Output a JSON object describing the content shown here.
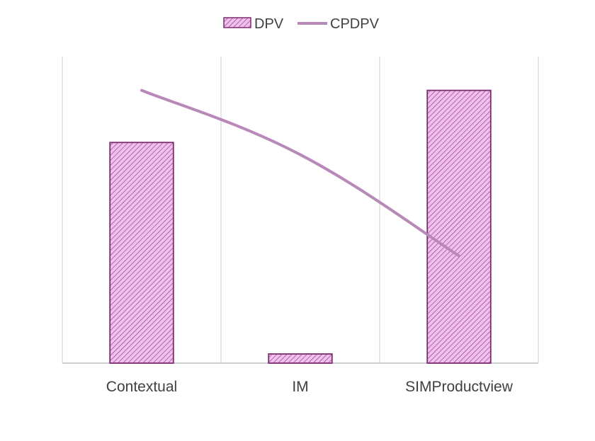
{
  "chart_data": {
    "type": "bar",
    "categories": [
      "Contextual",
      "IM",
      "SIMProductview"
    ],
    "series": [
      {
        "name": "DPV",
        "kind": "bar",
        "values": [
          7.2,
          0.3,
          8.9
        ],
        "color": "#e8a0e0",
        "border": "#7a2e70"
      },
      {
        "name": "CPDPV",
        "kind": "line",
        "values": [
          8.9,
          6.8,
          3.5
        ],
        "color": "#b888b8"
      }
    ],
    "ylim": [
      0,
      10
    ],
    "legend_position": "top-center",
    "grid": "vertical"
  }
}
